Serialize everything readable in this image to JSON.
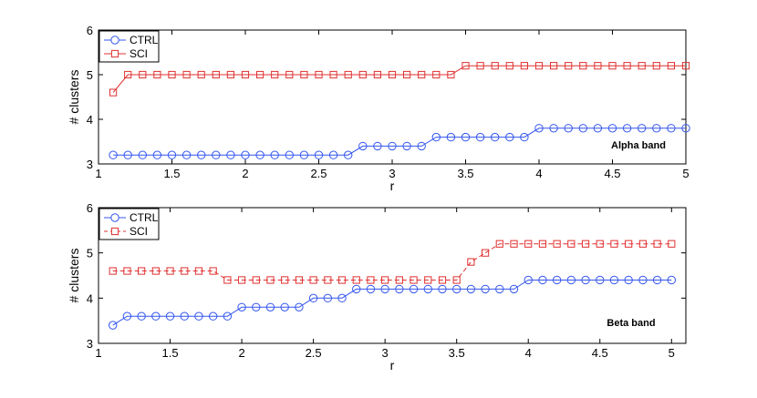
{
  "chart_data": [
    {
      "type": "line",
      "title": "",
      "annotation": "Alpha band",
      "xlabel": "r",
      "ylabel": "# clusters",
      "xlim": [
        1,
        5
      ],
      "ylim": [
        3,
        6
      ],
      "xticks": [
        "1",
        "1.5",
        "2",
        "2.5",
        "3",
        "3.5",
        "4",
        "4.5",
        "5"
      ],
      "yticks": [
        "3",
        "4",
        "5",
        "6"
      ],
      "grid": false,
      "legend_position": "top-left",
      "series": [
        {
          "name": "CTRL",
          "color": "#3355ee",
          "line_style": "solid",
          "marker": "circle",
          "x": [
            1.1,
            1.2,
            1.3,
            1.4,
            1.5,
            1.6,
            1.7,
            1.8,
            1.9,
            2.0,
            2.1,
            2.2,
            2.3,
            2.4,
            2.5,
            2.6,
            2.7,
            2.8,
            2.9,
            3.0,
            3.1,
            3.2,
            3.3,
            3.4,
            3.5,
            3.6,
            3.7,
            3.8,
            3.9,
            4.0,
            4.1,
            4.2,
            4.3,
            4.4,
            4.5,
            4.6,
            4.7,
            4.8,
            4.9,
            5.0
          ],
          "values": [
            3.2,
            3.2,
            3.2,
            3.2,
            3.2,
            3.2,
            3.2,
            3.2,
            3.2,
            3.2,
            3.2,
            3.2,
            3.2,
            3.2,
            3.2,
            3.2,
            3.2,
            3.4,
            3.4,
            3.4,
            3.4,
            3.4,
            3.6,
            3.6,
            3.6,
            3.6,
            3.6,
            3.6,
            3.6,
            3.8,
            3.8,
            3.8,
            3.8,
            3.8,
            3.8,
            3.8,
            3.8,
            3.8,
            3.8,
            3.8
          ]
        },
        {
          "name": "SCI",
          "color": "#e03030",
          "line_style": "solid",
          "marker": "square",
          "x": [
            1.1,
            1.2,
            1.3,
            1.4,
            1.5,
            1.6,
            1.7,
            1.8,
            1.9,
            2.0,
            2.1,
            2.2,
            2.3,
            2.4,
            2.5,
            2.6,
            2.7,
            2.8,
            2.9,
            3.0,
            3.1,
            3.2,
            3.3,
            3.4,
            3.5,
            3.6,
            3.7,
            3.8,
            3.9,
            4.0,
            4.1,
            4.2,
            4.3,
            4.4,
            4.5,
            4.6,
            4.7,
            4.8,
            4.9,
            5.0
          ],
          "values": [
            4.6,
            5.0,
            5.0,
            5.0,
            5.0,
            5.0,
            5.0,
            5.0,
            5.0,
            5.0,
            5.0,
            5.0,
            5.0,
            5.0,
            5.0,
            5.0,
            5.0,
            5.0,
            5.0,
            5.0,
            5.0,
            5.0,
            5.0,
            5.0,
            5.2,
            5.2,
            5.2,
            5.2,
            5.2,
            5.2,
            5.2,
            5.2,
            5.2,
            5.2,
            5.2,
            5.2,
            5.2,
            5.2,
            5.2,
            5.2
          ]
        }
      ]
    },
    {
      "type": "line",
      "title": "",
      "annotation": "Beta band",
      "xlabel": "r",
      "ylabel": "# clusters",
      "xlim": [
        1,
        5.1
      ],
      "ylim": [
        3,
        6
      ],
      "xticks": [
        "1",
        "1.5",
        "2",
        "2.5",
        "3",
        "3.5",
        "4",
        "4.5",
        "5"
      ],
      "yticks": [
        "3",
        "4",
        "5",
        "6"
      ],
      "grid": false,
      "legend_position": "top-left",
      "series": [
        {
          "name": "CTRL",
          "color": "#3355ee",
          "line_style": "solid",
          "marker": "circle",
          "x": [
            1.1,
            1.2,
            1.3,
            1.4,
            1.5,
            1.6,
            1.7,
            1.8,
            1.9,
            2.0,
            2.1,
            2.2,
            2.3,
            2.4,
            2.5,
            2.6,
            2.7,
            2.8,
            2.9,
            3.0,
            3.1,
            3.2,
            3.3,
            3.4,
            3.5,
            3.6,
            3.7,
            3.8,
            3.9,
            4.0,
            4.1,
            4.2,
            4.3,
            4.4,
            4.5,
            4.6,
            4.7,
            4.8,
            4.9,
            5.0
          ],
          "values": [
            3.4,
            3.6,
            3.6,
            3.6,
            3.6,
            3.6,
            3.6,
            3.6,
            3.6,
            3.8,
            3.8,
            3.8,
            3.8,
            3.8,
            4.0,
            4.0,
            4.0,
            4.2,
            4.2,
            4.2,
            4.2,
            4.2,
            4.2,
            4.2,
            4.2,
            4.2,
            4.2,
            4.2,
            4.2,
            4.4,
            4.4,
            4.4,
            4.4,
            4.4,
            4.4,
            4.4,
            4.4,
            4.4,
            4.4,
            4.4
          ]
        },
        {
          "name": "SCI",
          "color": "#e03030",
          "line_style": "dashed",
          "marker": "square",
          "x": [
            1.1,
            1.2,
            1.3,
            1.4,
            1.5,
            1.6,
            1.7,
            1.8,
            1.9,
            2.0,
            2.1,
            2.2,
            2.3,
            2.4,
            2.5,
            2.6,
            2.7,
            2.8,
            2.9,
            3.0,
            3.1,
            3.2,
            3.3,
            3.4,
            3.5,
            3.6,
            3.7,
            3.8,
            3.9,
            4.0,
            4.1,
            4.2,
            4.3,
            4.4,
            4.5,
            4.6,
            4.7,
            4.8,
            4.9,
            5.0
          ],
          "values": [
            4.6,
            4.6,
            4.6,
            4.6,
            4.6,
            4.6,
            4.6,
            4.6,
            4.4,
            4.4,
            4.4,
            4.4,
            4.4,
            4.4,
            4.4,
            4.4,
            4.4,
            4.4,
            4.4,
            4.4,
            4.4,
            4.4,
            4.4,
            4.4,
            4.4,
            4.8,
            5.0,
            5.2,
            5.2,
            5.2,
            5.2,
            5.2,
            5.2,
            5.2,
            5.2,
            5.2,
            5.2,
            5.2,
            5.2,
            5.2
          ]
        }
      ]
    }
  ]
}
